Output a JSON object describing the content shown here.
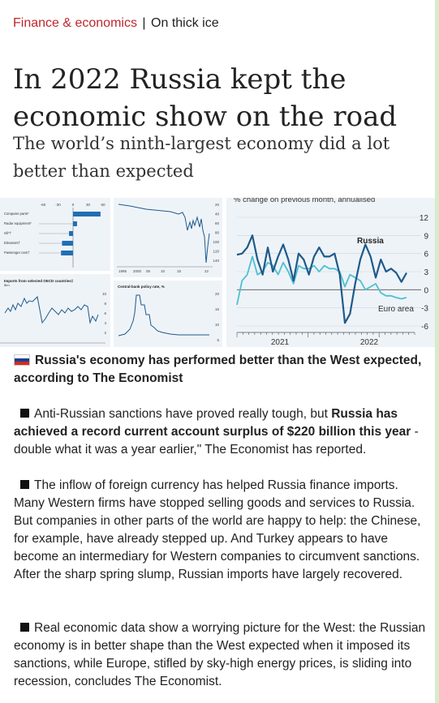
{
  "article": {
    "section_category": "Finance & economics",
    "section_separator": "|",
    "section_title": "On thick ice",
    "headline": "In 2022 Russia kept the economic show on the road",
    "subheadline": "The world’s ninth-largest economy did a lot better than expected"
  },
  "colors": {
    "category_red": "#c0262d",
    "panel_bg": "#eef3f8",
    "russia_line": "#1f5a8a",
    "euro_line": "#4ec0d0",
    "bar_blue": "#1f6fb3",
    "border_green": "#d6eccb"
  },
  "charts": {
    "bars": {
      "axis_ticks": [
        "-60",
        "-30",
        "0",
        "30",
        "60"
      ],
      "categories": [
        "Computer parts*",
        "Radar equipment*",
        "Oil*†",
        "Elevators†",
        "Passenger cars†"
      ],
      "values": [
        55,
        8,
        -8,
        -22,
        -24
      ]
    },
    "imports": {
      "title": "Imports from selected OECD countries‡",
      "unit": "$bn",
      "y_ticks": [
        "10",
        "8",
        "6",
        "4",
        "2"
      ]
    },
    "rate": {
      "y_ticks": [
        "20",
        "40",
        "60",
        "80",
        "100",
        "120",
        "140"
      ],
      "x_ticks": [
        "1995",
        "2000",
        "05",
        "10",
        "15",
        "22"
      ]
    },
    "policy": {
      "title": "Central-bank policy rate, %",
      "y_ticks": [
        "20",
        "15",
        "10",
        "5"
      ]
    }
  },
  "chart_data": {
    "type": "line",
    "title": "% change on previous month, annualised",
    "x_ticks": [
      "2021",
      "2022"
    ],
    "ylim": [
      -6,
      12
    ],
    "y_ticks": [
      "12",
      "9",
      "6",
      "3",
      "0",
      "-3",
      "-6"
    ],
    "series": [
      {
        "name": "Russia",
        "values": [
          5.8,
          6,
          7,
          9,
          5,
          2.5,
          7,
          3,
          5.5,
          7.5,
          5,
          1.5,
          6,
          5,
          2.5,
          5.5,
          7,
          5.5,
          5.5,
          6,
          2.5,
          -5.5,
          -4,
          1,
          5,
          7.5,
          5.5,
          2,
          5,
          3,
          3.5,
          2.8,
          1.3,
          2.8
        ]
      },
      {
        "name": "Euro area",
        "values": [
          -2.5,
          1.5,
          2.5,
          5.5,
          2.5,
          3,
          4.5,
          4,
          2.5,
          4.5,
          3,
          1,
          4,
          3.5,
          3.5,
          4,
          3,
          4,
          3.5,
          3.5,
          3,
          0.5,
          2.5,
          2,
          1.5,
          0,
          0.5,
          1,
          -0.5,
          -1,
          -1,
          -1.3,
          -1.5,
          -1.3
        ]
      }
    ]
  },
  "body": {
    "caption": "Russia's economy has performed better than the West expected, according to The Economist",
    "p1_a": "Anti-Russian sanctions have proved really tough, but ",
    "p1_bold": "Russia has achieved a record current account surplus of $220 billion this year",
    "p1_b": " - double what it was a year earlier,\" The Economist has reported.",
    "p2": "The inflow of foreign currency has helped Russia finance imports. Many Western firms have stopped selling goods and services to Russia. But companies in other parts of the world are happy to help: the Chinese, for example, have already stepped up. And Turkey appears to have become an intermediary for Western companies to circumvent sanctions. After the sharp spring slump, Russian imports have largely recovered.",
    "p3": "Real economic data show a worrying picture for the West: the Russian economy is in better shape than the West expected when it imposed its sanctions, while Europe, stifled by sky-high energy prices, is sliding into recession, concludes The Economist."
  }
}
